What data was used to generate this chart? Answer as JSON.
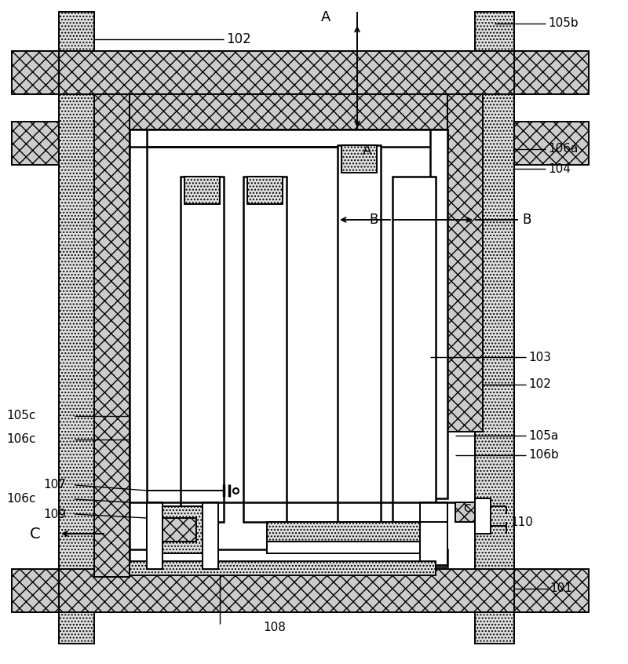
{
  "fig_width": 8.0,
  "fig_height": 8.46,
  "bg_color": "#ffffff",
  "labels": {
    "102_top": "102",
    "105b": "105b",
    "106a": "106a",
    "104": "104",
    "A_top": "A",
    "A_bot": "A",
    "B_left": "B",
    "B_right": "B",
    "103": "103",
    "102_right": "102",
    "105a": "105a",
    "106b": "106b",
    "105c": "105c",
    "106c_top": "106c",
    "107": "107",
    "106c_bot": "106c",
    "109": "109",
    "C_left": "C",
    "C_right": "C",
    "108": "108",
    "110": "110",
    "101": "101"
  },
  "colors": {
    "crosshatch_face": "#cccccc",
    "dot_face": "#e0e0e0",
    "white": "#ffffff",
    "black": "#000000"
  }
}
